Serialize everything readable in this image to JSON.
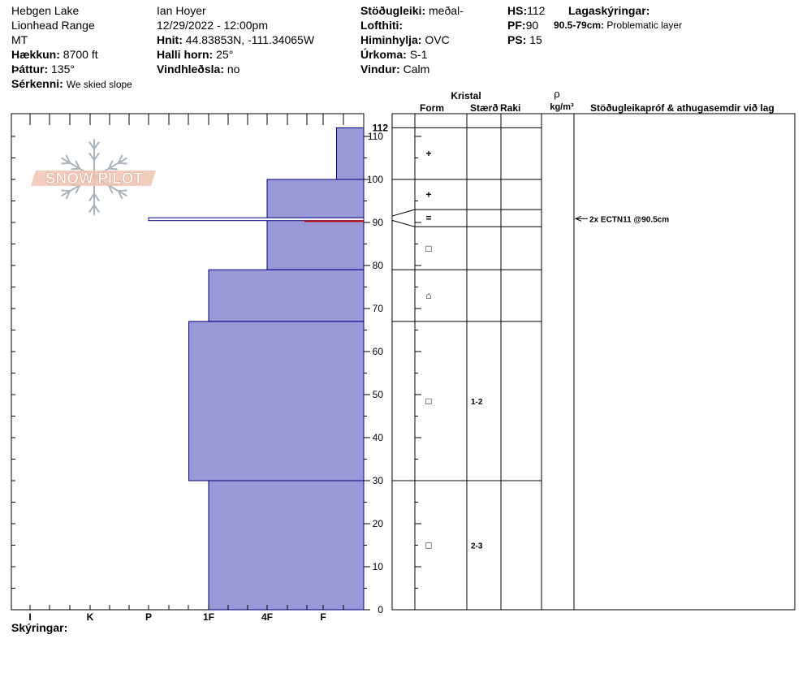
{
  "header": {
    "location1": "Hebgen Lake",
    "location2": "Lionhead Range",
    "state": "MT",
    "elevation_label": "Hækkun:",
    "elevation_value": "8700 ft",
    "aspect_label": "Þáttur:",
    "aspect_value": "135°",
    "feature_label": "Sérkenni:",
    "feature_value": "We skied slope",
    "observer": "Ian Hoyer",
    "datetime": "12/29/2022 - 12:00pm",
    "coords_label": "Hnit:",
    "coords_value": "44.83853N, -111.34065W",
    "slope_label": "Halli horn:",
    "slope_value": "25°",
    "wind_loading_label": "Vindhleðsla:",
    "wind_loading_value": "no",
    "stability_label": "Stöðugleiki:",
    "stability_value": "meðal-",
    "air_temp_label": "Lofthiti:",
    "air_temp_value": "",
    "sky_label": "Himinhylja:",
    "sky_value": "OVC",
    "precip_label": "Úrkoma:",
    "precip_value": "S-1",
    "wind_label": "Vindur:",
    "wind_value": "Calm",
    "hs_label": "HS:",
    "hs_value": "112",
    "pf_label": "PF:",
    "pf_value": "90",
    "ps_label": "PS:",
    "ps_value": "15",
    "layer_notes_label": "Lagaskýringar:",
    "layer_note_range": "90.5-79cm:",
    "layer_note_text": "Problematic layer"
  },
  "logo_text": "SNOW PILOT",
  "columns": {
    "crystal": "Kristal",
    "form": "Form",
    "size": "Stærð",
    "moisture": "Raki",
    "density_symbol": "ρ",
    "density_unit": "kg/m³",
    "stability_col": "Stöðugleikapróf & athugasemdir við lag"
  },
  "footer": {
    "comments_label": "Skýringar:"
  },
  "chart_data": {
    "type": "bar",
    "title": "",
    "hardness_categories": [
      "I",
      "K",
      "P",
      "1F",
      "4F",
      "F"
    ],
    "depth_ticks": [
      0,
      10,
      20,
      30,
      40,
      50,
      60,
      70,
      80,
      90,
      100,
      110
    ],
    "depth_top_label": "112",
    "ylim": [
      0,
      112
    ],
    "hardness_profile": [
      {
        "top": 112,
        "bottom": 100,
        "hardness": 6.33
      },
      {
        "top": 100,
        "bottom": 91,
        "hardness": 5.0
      },
      {
        "top": 91,
        "bottom": 90.5,
        "hardness": 3.0
      },
      {
        "top": 90.5,
        "bottom": 79,
        "hardness": 5.0
      },
      {
        "top": 79,
        "bottom": 67,
        "hardness": 4.0
      },
      {
        "top": 67,
        "bottom": 30,
        "hardness": 3.67
      },
      {
        "top": 30,
        "bottom": 0,
        "hardness": 4.0
      }
    ],
    "problem_layer_depth": 90.5,
    "layer_boundaries": [
      112,
      100,
      93,
      89,
      79,
      67,
      30,
      0
    ],
    "layers": [
      {
        "mid": 106,
        "form": "+",
        "size": ""
      },
      {
        "mid": 96.5,
        "form": "+",
        "size": ""
      },
      {
        "mid": 91,
        "form": "=",
        "size": ""
      },
      {
        "mid": 84,
        "form": "□",
        "size": ""
      },
      {
        "mid": 73,
        "form": "⌂",
        "size": ""
      },
      {
        "mid": 48.5,
        "form": "□",
        "size": "1-2"
      },
      {
        "mid": 15,
        "form": "□",
        "size": "2-3"
      }
    ],
    "stability_tests": [
      {
        "depth": 90.5,
        "text": "2x ECTN11 @90.5cm"
      }
    ]
  }
}
